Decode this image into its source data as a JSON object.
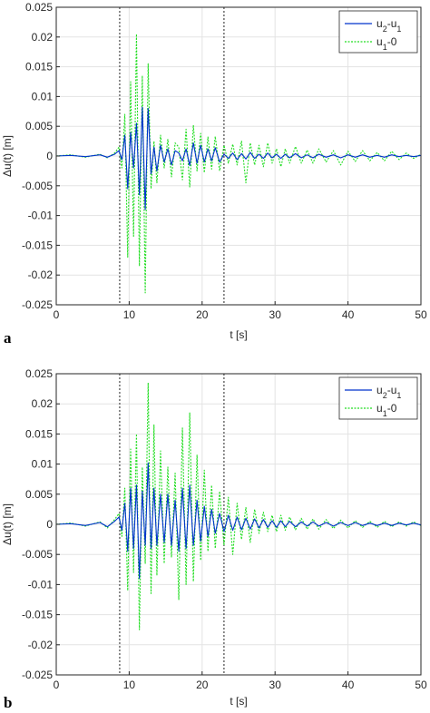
{
  "figure": {
    "panels": [
      {
        "letter": "a",
        "legend_position": "top-right",
        "grid": true,
        "vlines": [
          8.7,
          23.0
        ]
      },
      {
        "letter": "b",
        "legend_position": "top-right",
        "grid": true,
        "vlines": [
          8.7,
          23.0
        ]
      }
    ]
  },
  "chart_data": [
    {
      "type": "line",
      "title": "",
      "xlabel": "t [s]",
      "ylabel": "Δu(t) [m]",
      "xlim": [
        0,
        50
      ],
      "ylim": [
        -0.025,
        0.025
      ],
      "xticks": [
        0,
        10,
        20,
        30,
        40,
        50
      ],
      "yticks": [
        0.025,
        0.02,
        0.015,
        0.01,
        0.005,
        0,
        -0.005,
        -0.01,
        -0.015,
        -0.02,
        -0.025
      ],
      "xtick_labels": [
        "0",
        "10",
        "20",
        "30",
        "40",
        "50"
      ],
      "ytick_labels": [
        "0.025",
        "0.02",
        "0.015",
        "0.01",
        "0.005",
        "0",
        "-0.005",
        "-0.01",
        "-0.015",
        "-0.02",
        "-0.025"
      ],
      "grid": true,
      "legend": [
        "u2-u1",
        "u1-0"
      ],
      "series": [
        {
          "name": "u2-u1",
          "color": "#0033cc",
          "style": "solid",
          "x": [
            0,
            2,
            4,
            6,
            7,
            8,
            8.6,
            9.0,
            9.4,
            9.8,
            10.2,
            10.6,
            11.0,
            11.4,
            11.8,
            12.2,
            12.6,
            13.0,
            13.4,
            13.8,
            14.3,
            14.8,
            15.3,
            15.8,
            16.3,
            16.8,
            17.3,
            17.8,
            18.3,
            18.8,
            19.3,
            19.8,
            20.3,
            20.8,
            21.3,
            21.8,
            22.4,
            23.0,
            23.6,
            24.2,
            24.8,
            25.4,
            26.0,
            26.6,
            27.2,
            27.8,
            28.4,
            29.0,
            29.6,
            30.2,
            30.8,
            31.4,
            32.0,
            32.8,
            33.6,
            34.4,
            35.2,
            36.0,
            37.0,
            38.0,
            39.0,
            40.0,
            41.0,
            42.0,
            43.0,
            44.0,
            45.0,
            46.0,
            47.0,
            48.0,
            49.0,
            50.0
          ],
          "y": [
            0,
            0.0001,
            -0.0001,
            0.0002,
            -0.0002,
            0.0003,
            0.0009,
            -0.0006,
            0.0035,
            -0.0055,
            0.004,
            -0.002,
            0.0055,
            -0.0065,
            0.0082,
            -0.009,
            0.008,
            -0.003,
            0.0015,
            -0.0025,
            0.0018,
            -0.001,
            0.0012,
            -0.0015,
            0.0009,
            0.0005,
            -0.0008,
            0.0012,
            -0.0016,
            0.0022,
            -0.0012,
            0.0018,
            -0.001,
            0.0012,
            -0.0008,
            0.0014,
            -0.001,
            0.0003,
            -0.0004,
            0.0005,
            -0.0006,
            0.0004,
            -0.0005,
            0.0006,
            -0.0004,
            0.0003,
            -0.0004,
            0.0005,
            -0.0003,
            0.0003,
            -0.0004,
            0.0003,
            -0.0003,
            0.0004,
            -0.0003,
            0.0002,
            -0.0003,
            0.0003,
            -0.0002,
            0.0002,
            -0.0003,
            0.0002,
            -0.0002,
            0.0002,
            -0.0002,
            0.0001,
            -0.0002,
            0.0002,
            -0.0001,
            0.0001,
            -0.0001,
            0.0001
          ]
        },
        {
          "name": "u1-0",
          "color": "#22dd22",
          "style": "dotted",
          "x": [
            0,
            2,
            4,
            6,
            7,
            8,
            8.6,
            9.0,
            9.4,
            9.8,
            10.2,
            10.6,
            11.0,
            11.4,
            11.8,
            12.2,
            12.6,
            13.0,
            13.4,
            13.8,
            14.3,
            14.8,
            15.3,
            15.8,
            16.3,
            16.8,
            17.3,
            17.8,
            18.3,
            18.8,
            19.3,
            19.8,
            20.3,
            20.8,
            21.3,
            21.8,
            22.4,
            23.0,
            23.6,
            24.2,
            24.8,
            25.4,
            26.0,
            26.6,
            27.2,
            27.8,
            28.4,
            29.0,
            29.6,
            30.2,
            30.8,
            31.4,
            32.0,
            32.8,
            33.6,
            34.4,
            35.2,
            36.0,
            37.0,
            38.0,
            39.0,
            40.0,
            41.0,
            42.0,
            43.0,
            44.0,
            45.0,
            46.0,
            47.0,
            48.0,
            49.0,
            50.0
          ],
          "y": [
            0,
            0.0002,
            -0.0002,
            0.0003,
            -0.0003,
            0.0005,
            0.0015,
            -0.002,
            0.007,
            -0.017,
            0.0125,
            -0.0135,
            0.0205,
            -0.0185,
            0.0135,
            -0.023,
            0.0155,
            -0.0055,
            0.0025,
            -0.0045,
            0.0035,
            -0.002,
            0.0028,
            -0.0035,
            0.0022,
            0.0015,
            -0.004,
            0.0045,
            -0.0052,
            0.0052,
            -0.0025,
            0.0038,
            -0.0028,
            0.0032,
            -0.0022,
            0.0033,
            -0.0025,
            0.0018,
            -0.0012,
            0.002,
            -0.0015,
            0.0025,
            -0.0045,
            0.0022,
            -0.0015,
            0.0018,
            -0.0018,
            0.0022,
            -0.0012,
            0.0012,
            -0.0018,
            0.0012,
            -0.0012,
            0.0016,
            -0.0012,
            0.001,
            -0.0012,
            0.0012,
            -0.001,
            0.0009,
            -0.0015,
            0.0008,
            -0.0009,
            0.0009,
            -0.0008,
            0.0006,
            -0.0008,
            0.0008,
            -0.0006,
            0.0005,
            -0.0004,
            0.0003
          ]
        }
      ]
    },
    {
      "type": "line",
      "title": "",
      "xlabel": "t [s]",
      "ylabel": "Δu(t) [m]",
      "xlim": [
        0,
        50
      ],
      "ylim": [
        -0.025,
        0.025
      ],
      "xticks": [
        0,
        10,
        20,
        30,
        40,
        50
      ],
      "yticks": [
        0.025,
        0.02,
        0.015,
        0.01,
        0.005,
        0,
        -0.005,
        -0.01,
        -0.015,
        -0.02,
        -0.025
      ],
      "xtick_labels": [
        "0",
        "10",
        "20",
        "30",
        "40",
        "50"
      ],
      "ytick_labels": [
        "0.025",
        "0.02",
        "0.015",
        "0.01",
        "0.005",
        "0",
        "-0.005",
        "-0.01",
        "-0.015",
        "-0.02",
        "-0.025"
      ],
      "grid": true,
      "legend": [
        "u2-u1",
        "u1-0"
      ],
      "series": [
        {
          "name": "u2-u1",
          "color": "#0033cc",
          "style": "solid",
          "x": [
            0,
            2,
            4,
            6,
            7,
            8,
            8.6,
            9.0,
            9.4,
            9.8,
            10.2,
            10.6,
            11.0,
            11.4,
            11.8,
            12.2,
            12.6,
            13.0,
            13.4,
            13.8,
            14.3,
            14.8,
            15.3,
            15.8,
            16.3,
            16.8,
            17.3,
            17.8,
            18.3,
            18.8,
            19.3,
            19.8,
            20.3,
            20.8,
            21.3,
            21.8,
            22.4,
            23.0,
            23.6,
            24.2,
            24.8,
            25.4,
            26.0,
            26.6,
            27.2,
            27.8,
            28.4,
            29.0,
            29.6,
            30.2,
            30.8,
            31.4,
            32.0,
            32.8,
            33.6,
            34.4,
            35.2,
            36.0,
            37.0,
            38.0,
            39.0,
            40.0,
            41.0,
            42.0,
            43.0,
            44.0,
            45.0,
            46.0,
            47.0,
            48.0,
            49.0,
            50.0
          ],
          "y": [
            0,
            0.0001,
            -0.0002,
            0.0003,
            -0.0004,
            0.0005,
            0.0012,
            -0.001,
            0.0035,
            -0.0045,
            0.006,
            -0.004,
            0.0065,
            -0.009,
            0.0055,
            -0.0035,
            0.0102,
            -0.004,
            0.006,
            -0.0035,
            0.005,
            -0.003,
            0.005,
            -0.0035,
            0.004,
            -0.0045,
            0.006,
            -0.004,
            0.0065,
            -0.0035,
            0.004,
            -0.0028,
            0.003,
            -0.002,
            0.0025,
            -0.0015,
            0.0018,
            -0.0012,
            0.0015,
            -0.001,
            0.0012,
            -0.0009,
            0.001,
            -0.0008,
            0.0009,
            -0.0006,
            0.0008,
            -0.0005,
            0.0006,
            -0.0005,
            0.0006,
            -0.0004,
            0.0005,
            -0.0004,
            0.0004,
            -0.0003,
            0.0004,
            -0.0003,
            0.0003,
            -0.0003,
            0.0003,
            -0.0002,
            0.0003,
            -0.0002,
            0.0002,
            -0.0002,
            0.0002,
            -0.0002,
            0.0002,
            -0.0001,
            0.0002,
            -0.0001
          ]
        },
        {
          "name": "u1-0",
          "color": "#22dd22",
          "style": "dotted",
          "x": [
            0,
            2,
            4,
            6,
            7,
            8,
            8.6,
            9.0,
            9.4,
            9.8,
            10.2,
            10.6,
            11.0,
            11.4,
            11.8,
            12.2,
            12.6,
            13.0,
            13.4,
            13.8,
            14.3,
            14.8,
            15.3,
            15.8,
            16.3,
            16.8,
            17.3,
            17.8,
            18.3,
            18.8,
            19.3,
            19.8,
            20.3,
            20.8,
            21.3,
            21.8,
            22.4,
            23.0,
            23.6,
            24.2,
            24.8,
            25.4,
            26.0,
            26.6,
            27.2,
            27.8,
            28.4,
            29.0,
            29.6,
            30.2,
            30.8,
            31.4,
            32.0,
            32.8,
            33.6,
            34.4,
            35.2,
            36.0,
            37.0,
            38.0,
            39.0,
            40.0,
            41.0,
            42.0,
            43.0,
            44.0,
            45.0,
            46.0,
            47.0,
            48.0,
            49.0,
            50.0
          ],
          "y": [
            0,
            0.0002,
            -0.0003,
            0.0004,
            -0.0006,
            0.0008,
            0.0018,
            -0.002,
            0.006,
            -0.011,
            0.0125,
            -0.008,
            0.015,
            -0.0175,
            0.0095,
            -0.0065,
            0.0235,
            -0.0115,
            0.0165,
            -0.0085,
            0.0122,
            -0.0065,
            0.0095,
            -0.0055,
            0.0085,
            -0.0125,
            0.016,
            -0.01,
            0.0185,
            -0.0095,
            0.0115,
            -0.006,
            0.009,
            -0.0045,
            0.0065,
            -0.004,
            0.0055,
            -0.0035,
            0.0045,
            -0.005,
            0.0035,
            -0.0025,
            0.0028,
            -0.003,
            0.0025,
            -0.0015,
            0.002,
            -0.0012,
            0.0015,
            -0.0012,
            0.0015,
            -0.001,
            0.0012,
            -0.0009,
            0.001,
            -0.0008,
            0.0009,
            -0.0008,
            0.0008,
            -0.0007,
            0.0007,
            -0.0006,
            0.0006,
            -0.0005,
            0.0005,
            -0.0005,
            0.0005,
            -0.0004,
            0.0004,
            -0.0003,
            0.0004,
            -0.0002
          ]
        }
      ]
    }
  ]
}
